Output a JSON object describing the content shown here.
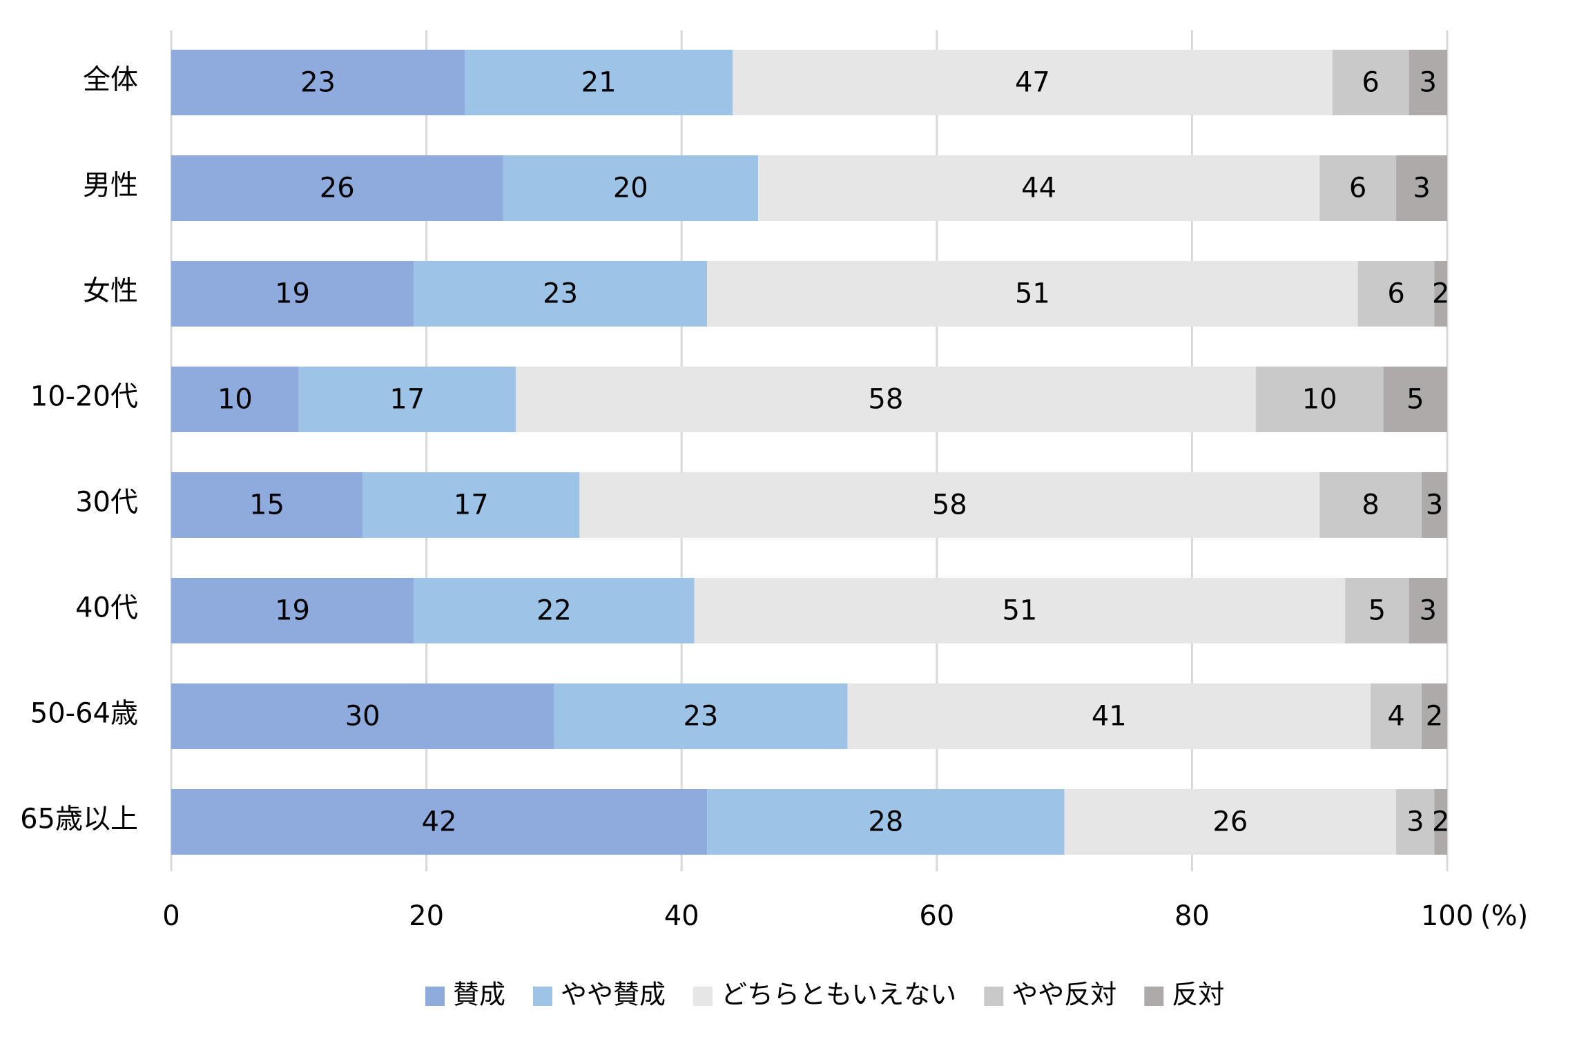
{
  "chart_data": {
    "type": "bar",
    "orientation": "horizontal",
    "stacked": true,
    "title": "",
    "xlabel": "",
    "ylabel": "",
    "xlim": [
      0,
      100
    ],
    "x_ticks": [
      0,
      20,
      40,
      60,
      80,
      100
    ],
    "x_unit": "(%)",
    "grid": true,
    "legend_position": "bottom",
    "categories": [
      "全体",
      "男性",
      "女性",
      "10-20代",
      "30代",
      "40代",
      "50-64歳",
      "65歳以上"
    ],
    "series": [
      {
        "name": "賛成",
        "color": "#8faadc",
        "values": [
          23,
          26,
          19,
          10,
          15,
          19,
          30,
          42
        ]
      },
      {
        "name": "やや賛成",
        "color": "#9dc3e6",
        "values": [
          21,
          20,
          23,
          17,
          17,
          22,
          23,
          28
        ]
      },
      {
        "name": "どちらともいえない",
        "color": "#e7e6e6",
        "values": [
          47,
          44,
          51,
          58,
          58,
          51,
          41,
          26
        ]
      },
      {
        "name": "やや反対",
        "color": "#c9c9c9",
        "values": [
          6,
          6,
          6,
          10,
          8,
          5,
          4,
          3
        ]
      },
      {
        "name": "反対",
        "color": "#aeaaaa",
        "values": [
          3,
          3,
          2,
          5,
          3,
          3,
          2,
          2
        ]
      }
    ]
  }
}
